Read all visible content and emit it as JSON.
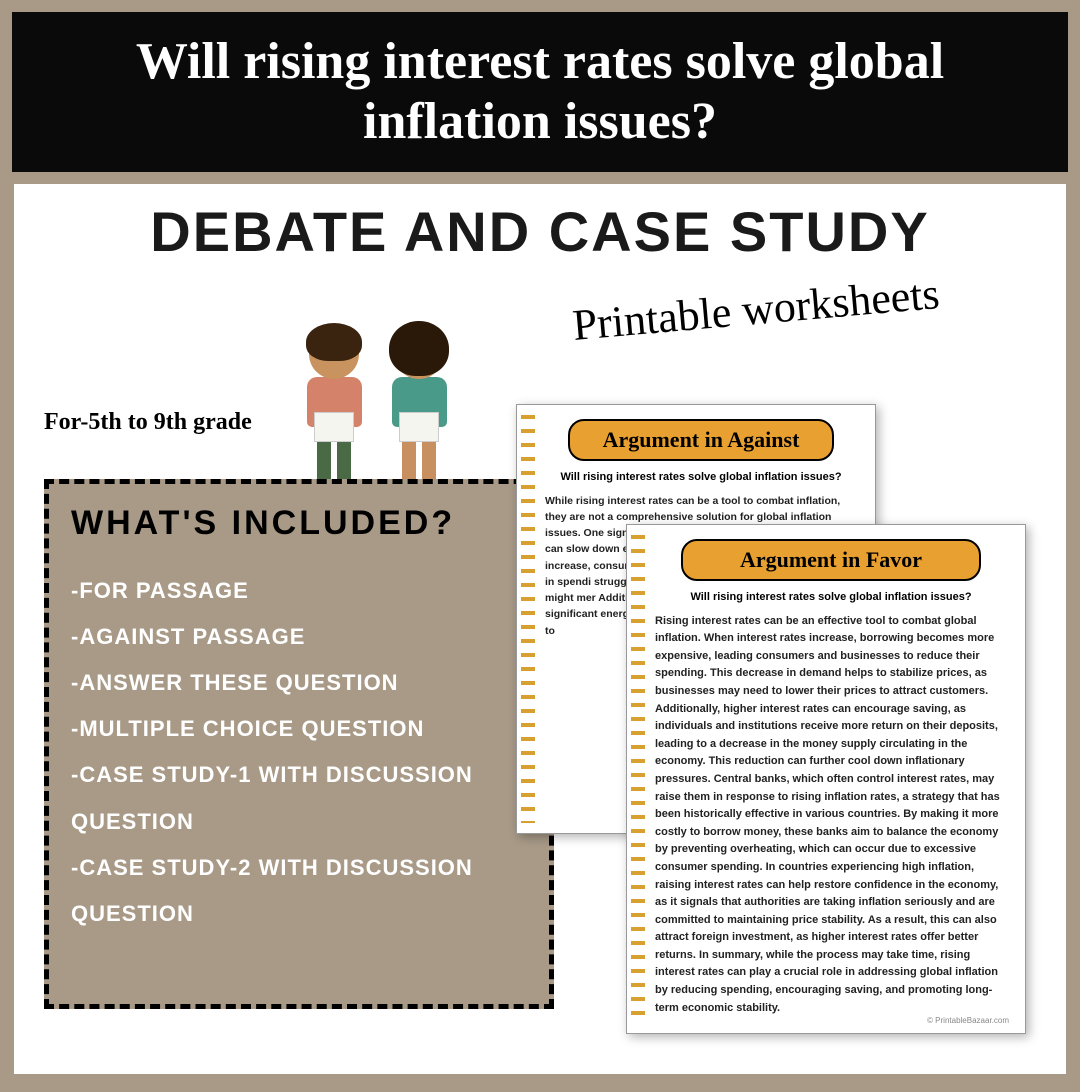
{
  "title": "Will rising interest rates solve global inflation issues?",
  "subtitle": "Debate and case study",
  "script_label": "Printable worksheets",
  "grade_label": "For-5th to 9th grade",
  "included": {
    "heading": "WHAT'S INCLUDED?",
    "items": [
      "-for passage",
      "-against passage",
      "-answer these question",
      "-multiple choice question",
      "-case study-1 with discussion question",
      "-case study-2 with discussion question"
    ]
  },
  "worksheet_against": {
    "header": "Argument in Against",
    "header_bg": "#e8a030",
    "question": "Will rising interest rates solve global inflation issues?",
    "body": "While rising interest rates can be a tool to combat inflation, they are not a comprehensive solution for global inflation issues. One significant drawback is that higher interest rates can slow down economic growth. When borrowing costs increase, consumers may limit major purchases like homes or in spendi struggle t rising inte househol of adequ chain disr might mer Additiona simultane markets. lead to a tackle infl significant energy, w such as ge may be sh address in failing to"
  },
  "worksheet_favor": {
    "header": "Argument in Favor",
    "header_bg": "#e8a030",
    "question": "Will rising interest rates solve global inflation issues?",
    "body": "Rising interest rates can be an effective tool to combat global inflation. When interest rates increase, borrowing becomes more expensive, leading consumers and businesses to reduce their spending. This decrease in demand helps to stabilize prices, as businesses may need to lower their prices to attract customers. Additionally, higher interest rates can encourage saving, as individuals and institutions receive more return on their deposits, leading to a decrease in the money supply circulating in the economy. This reduction can further cool down inflationary pressures. Central banks, which often control interest rates, may raise them in response to rising inflation rates, a strategy that has been historically effective in various countries. By making it more costly to borrow money, these banks aim to balance the economy by preventing overheating, which can occur due to excessive consumer spending. In countries experiencing high inflation, raising interest rates can help restore confidence in the economy, as it signals that authorities are taking inflation seriously and are committed to maintaining price stability. As a result, this can also attract foreign investment, as higher interest rates offer better returns. In summary, while the process may take time, rising interest rates can play a crucial role in addressing global inflation by reducing spending, encouraging saving, and promoting long-term economic stability.",
    "footer": "© PrintableBazaar.com"
  },
  "colors": {
    "page_bg": "#a89a87",
    "banner_bg": "#0a0a0a",
    "banner_text": "#ffffff",
    "content_bg": "#ffffff",
    "box_bg": "#a89a87",
    "box_text": "#ffffff"
  }
}
